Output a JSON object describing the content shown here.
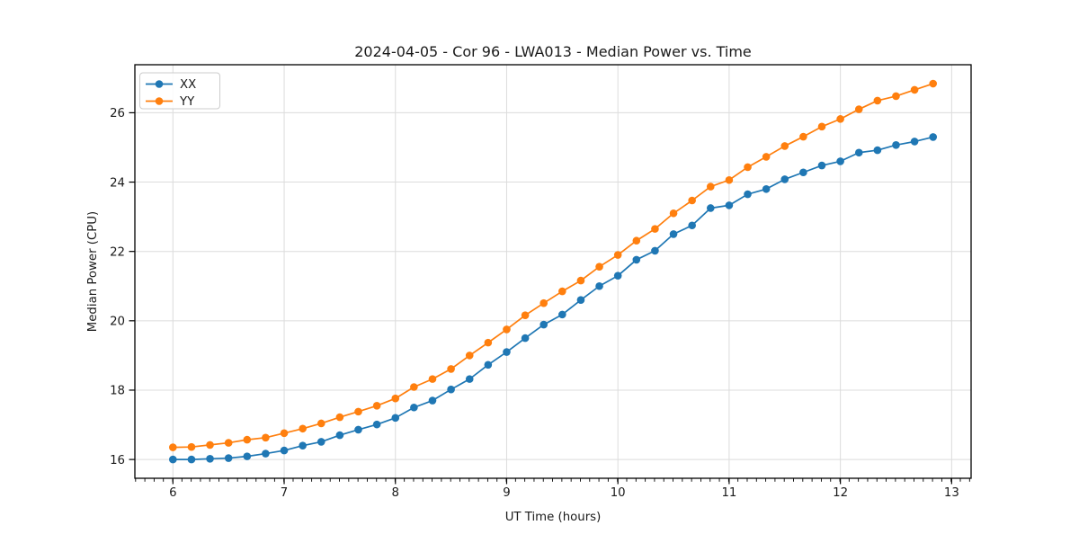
{
  "chart_data": {
    "type": "line",
    "title": "2024-04-05 - Cor 96 - LWA013 - Median Power vs. Time",
    "xlabel": "UT Time (hours)",
    "ylabel": "Median Power (CPU)",
    "xlim": [
      5.658,
      13.175
    ],
    "ylim": [
      15.458,
      27.385
    ],
    "xticks": [
      6,
      7,
      8,
      9,
      10,
      11,
      12,
      13
    ],
    "xtick_labels": [
      "6",
      "7",
      "8",
      "9",
      "10",
      "11",
      "12",
      "13"
    ],
    "x_minor_tick_step": 0.0833,
    "yticks": [
      16,
      18,
      20,
      22,
      24,
      26
    ],
    "ytick_labels": [
      "16",
      "18",
      "20",
      "22",
      "24",
      "26"
    ],
    "grid": "major-both",
    "legend_position": "upper-left",
    "x": [
      6.0,
      6.1667,
      6.3333,
      6.5,
      6.6667,
      6.8333,
      7.0,
      7.1667,
      7.3333,
      7.5,
      7.6667,
      7.8333,
      8.0,
      8.1667,
      8.3333,
      8.5,
      8.6667,
      8.8333,
      9.0,
      9.1667,
      9.3333,
      9.5,
      9.6667,
      9.8333,
      10.0,
      10.1667,
      10.3333,
      10.5,
      10.6667,
      10.8333,
      11.0,
      11.1667,
      11.3333,
      11.5,
      11.6667,
      11.8333,
      12.0,
      12.1667,
      12.3333,
      12.5,
      12.6667,
      12.8333
    ],
    "series": [
      {
        "name": "XX",
        "color": "#1f77b4",
        "values": [
          16.0,
          16.0,
          16.02,
          16.04,
          16.09,
          16.17,
          16.26,
          16.4,
          16.51,
          16.7,
          16.86,
          17.01,
          17.2,
          17.5,
          17.7,
          18.02,
          18.32,
          18.73,
          19.1,
          19.5,
          19.89,
          20.18,
          20.6,
          21.0,
          21.3,
          21.76,
          22.02,
          22.5,
          22.75,
          23.25,
          23.33,
          23.65,
          23.8,
          24.08,
          24.28,
          24.48,
          24.6,
          24.85,
          24.92,
          25.07,
          25.17,
          25.3
        ]
      },
      {
        "name": "YY",
        "color": "#ff7f0e",
        "values": [
          16.35,
          16.36,
          16.42,
          16.48,
          16.57,
          16.63,
          16.76,
          16.89,
          17.04,
          17.22,
          17.38,
          17.55,
          17.76,
          18.09,
          18.32,
          18.61,
          19.0,
          19.37,
          19.75,
          20.16,
          20.51,
          20.85,
          21.16,
          21.56,
          21.9,
          22.31,
          22.65,
          23.1,
          23.47,
          23.87,
          24.06,
          24.43,
          24.73,
          25.04,
          25.31,
          25.6,
          25.82,
          26.1,
          26.35,
          26.48,
          26.66,
          26.84
        ]
      }
    ],
    "legend": [
      {
        "label": "XX",
        "color": "#1f77b4"
      },
      {
        "label": "YY",
        "color": "#ff7f0e"
      }
    ],
    "colors": {
      "grid": "#dcdcdc",
      "spine": "#000000",
      "background": "#ffffff"
    }
  }
}
